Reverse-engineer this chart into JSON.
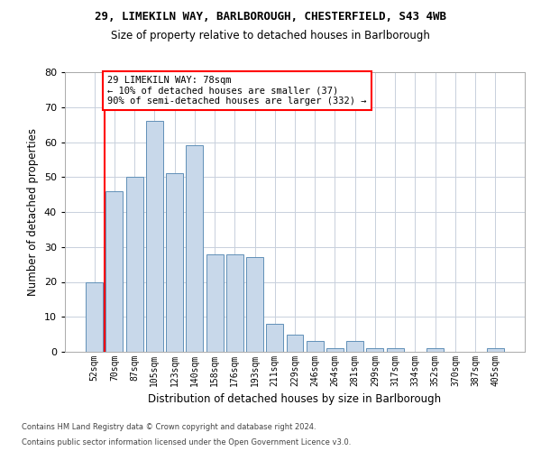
{
  "title1": "29, LIMEKILN WAY, BARLBOROUGH, CHESTERFIELD, S43 4WB",
  "title2": "Size of property relative to detached houses in Barlborough",
  "xlabel": "Distribution of detached houses by size in Barlborough",
  "ylabel": "Number of detached properties",
  "bar_color": "#c8d8ea",
  "bar_edge_color": "#6090b8",
  "grid_color": "#c8d0dc",
  "categories": [
    "52sqm",
    "70sqm",
    "87sqm",
    "105sqm",
    "123sqm",
    "140sqm",
    "158sqm",
    "176sqm",
    "193sqm",
    "211sqm",
    "229sqm",
    "246sqm",
    "264sqm",
    "281sqm",
    "299sqm",
    "317sqm",
    "334sqm",
    "352sqm",
    "370sqm",
    "387sqm",
    "405sqm"
  ],
  "values": [
    20,
    46,
    50,
    66,
    51,
    59,
    28,
    28,
    27,
    8,
    5,
    3,
    1,
    3,
    1,
    1,
    0,
    1,
    0,
    0,
    1
  ],
  "ylim": [
    0,
    80
  ],
  "yticks": [
    0,
    10,
    20,
    30,
    40,
    50,
    60,
    70,
    80
  ],
  "annotation_text": "29 LIMEKILN WAY: 78sqm\n← 10% of detached houses are smaller (37)\n90% of semi-detached houses are larger (332) →",
  "annotation_box_color": "white",
  "annotation_box_edge_color": "red",
  "vline_color": "red",
  "vline_x": 1.5,
  "footnote1": "Contains HM Land Registry data © Crown copyright and database right 2024.",
  "footnote2": "Contains public sector information licensed under the Open Government Licence v3.0."
}
